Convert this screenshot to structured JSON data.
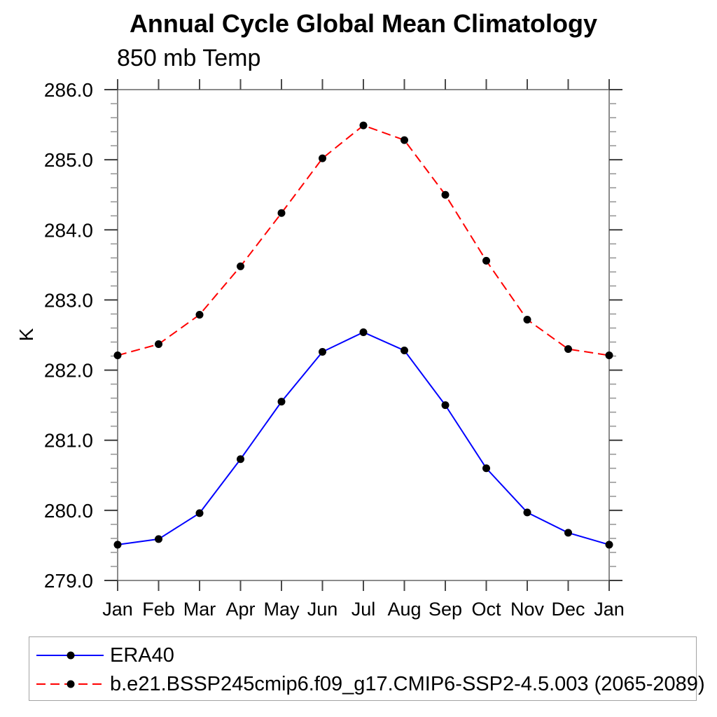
{
  "chart_data": {
    "type": "line",
    "title": "Annual Cycle Global Mean Climatology",
    "subtitle": "850 mb Temp",
    "ylabel": "K",
    "x_categories": [
      "Jan",
      "Feb",
      "Mar",
      "Apr",
      "May",
      "Jun",
      "Jul",
      "Aug",
      "Sep",
      "Oct",
      "Nov",
      "Dec",
      "Jan"
    ],
    "ylim": [
      279.0,
      286.0
    ],
    "ytick_interval": 1.0,
    "yminor_interval": 0.2,
    "ytick_labels": [
      "279.0",
      "280.0",
      "281.0",
      "282.0",
      "283.0",
      "284.0",
      "285.0",
      "286.0"
    ],
    "grid": false,
    "legend_position": "bottom-left",
    "series": [
      {
        "name": "ERA40",
        "color": "#0000ff",
        "line_style": "solid",
        "marker": "filled-circle",
        "marker_color": "#000000",
        "values": [
          279.51,
          279.59,
          279.96,
          280.73,
          281.55,
          282.26,
          282.54,
          282.28,
          281.5,
          280.6,
          279.97,
          279.68,
          279.51
        ]
      },
      {
        "name": "b.e21.BSSP245cmip6.f09_g17.CMIP6-SSP2-4.5.003 (2065-2089)",
        "color": "#ff0000",
        "line_style": "dashed",
        "marker": "filled-circle",
        "marker_color": "#000000",
        "values": [
          282.21,
          282.37,
          282.79,
          283.48,
          284.24,
          285.02,
          285.49,
          285.28,
          284.5,
          283.56,
          282.72,
          282.3,
          282.21
        ]
      }
    ]
  }
}
